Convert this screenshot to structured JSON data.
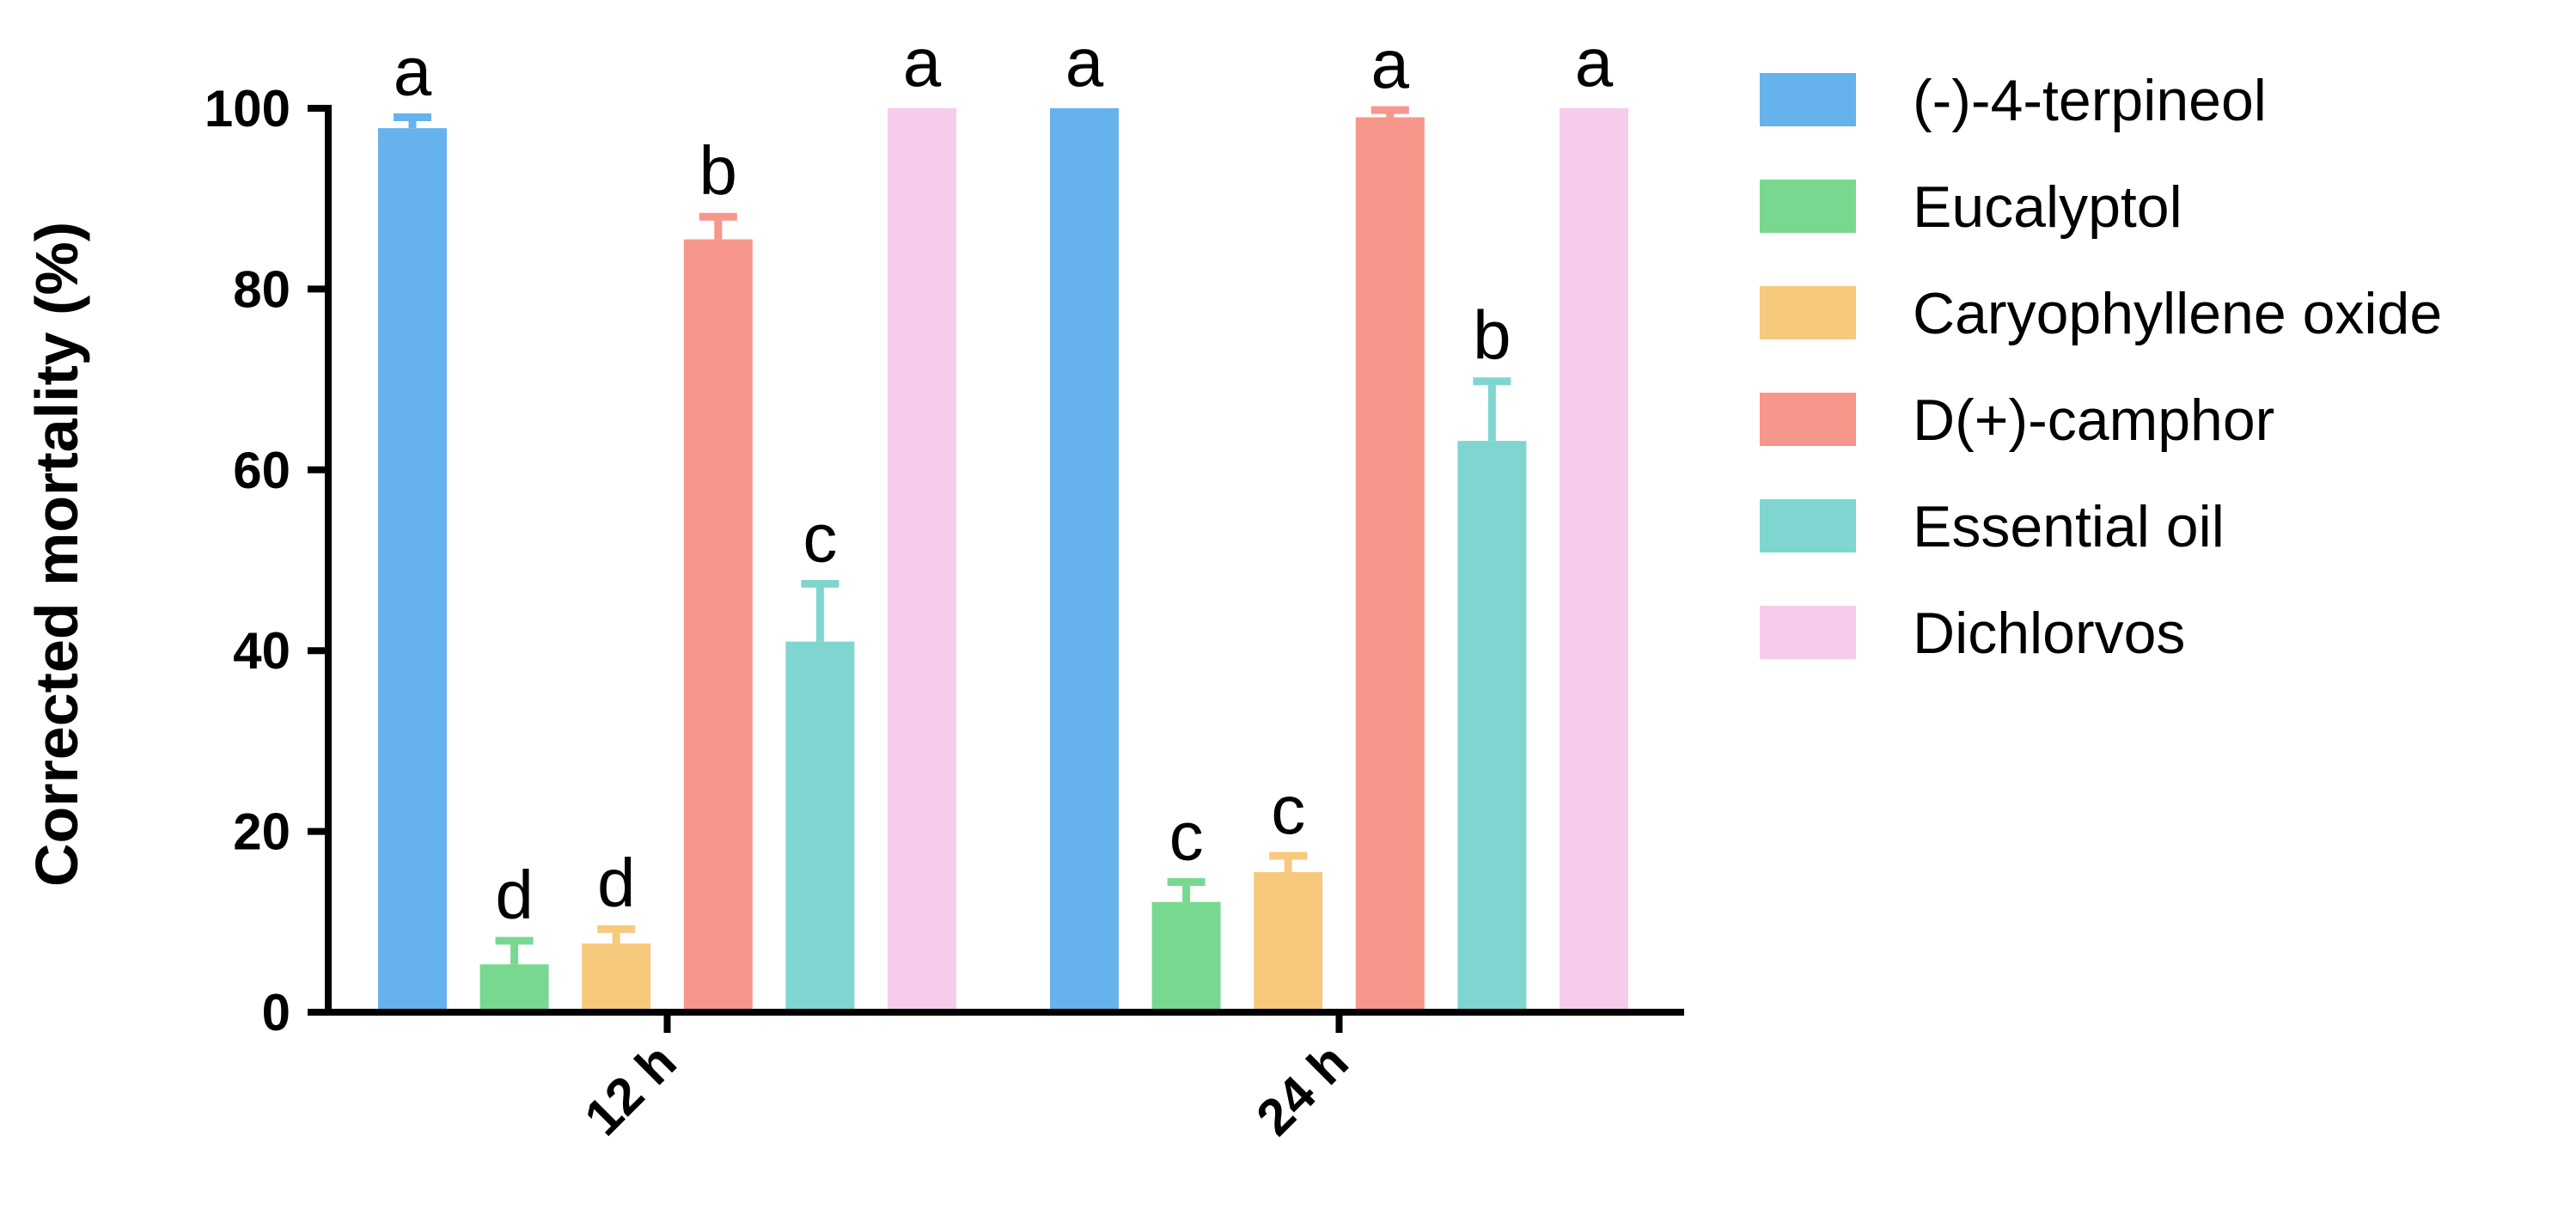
{
  "chart_data": {
    "type": "bar",
    "categories": [
      "12 h",
      "24 h"
    ],
    "ylabel": "Corrected mortality (%)",
    "xlabel": "",
    "ylim": [
      0,
      100
    ],
    "yticks": [
      0,
      20,
      40,
      60,
      80,
      100
    ],
    "legend_position": "right",
    "grid": false,
    "series": [
      {
        "name": "(-)-4-terpineol",
        "color": "#66b2ec",
        "values": [
          97.8,
          100
        ],
        "errors": [
          1.2,
          0
        ],
        "letters": [
          "a",
          "a"
        ]
      },
      {
        "name": "Eucalyptol",
        "color": "#79d88f",
        "values": [
          5.3,
          12.2
        ],
        "errors": [
          2.6,
          2.2
        ],
        "letters": [
          "d",
          "c"
        ]
      },
      {
        "name": "Caryophyllene oxide",
        "color": "#f7c97c",
        "values": [
          7.6,
          15.5
        ],
        "errors": [
          1.6,
          1.8
        ],
        "letters": [
          "d",
          "c"
        ]
      },
      {
        "name": "D(+)-camphor",
        "color": "#f7968a",
        "values": [
          85.5,
          99.0
        ],
        "errors": [
          2.5,
          0.8
        ],
        "letters": [
          "b",
          "a"
        ]
      },
      {
        "name": "Essential oil",
        "color": "#7fd6d0",
        "values": [
          41.0,
          63.2
        ],
        "errors": [
          6.4,
          6.6
        ],
        "letters": [
          "c",
          "b"
        ]
      },
      {
        "name": "Dichlorvos",
        "color": "#f7cbec",
        "values": [
          100,
          100
        ],
        "errors": [
          0,
          0
        ],
        "letters": [
          "a",
          "a"
        ]
      }
    ]
  }
}
